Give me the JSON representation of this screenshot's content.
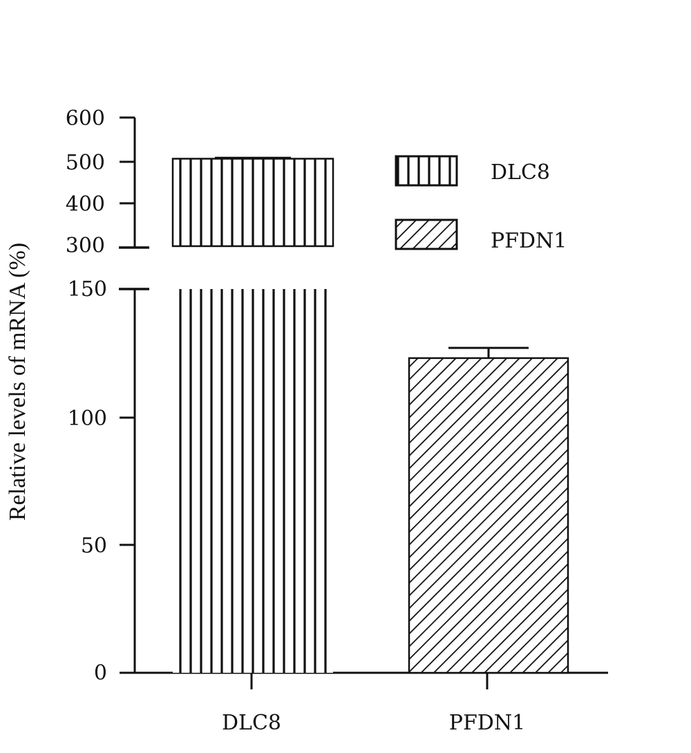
{
  "chart_data": {
    "type": "bar",
    "title": "",
    "xlabel": "",
    "ylabel": "Relative levels of mRNA (%)",
    "categories": [
      "DLC8",
      "PFDN1"
    ],
    "values": [
      505,
      123
    ],
    "errors": [
      2,
      4
    ],
    "fills": [
      "vertical-stripes",
      "diagonal-stripes"
    ],
    "axis_break": {
      "lower_range": [
        0,
        150
      ],
      "upper_range": [
        300,
        600
      ]
    },
    "lower_ticks": [
      "0",
      "50",
      "100",
      "150"
    ],
    "upper_ticks": [
      "300",
      "400",
      "500",
      "600"
    ],
    "legend": {
      "position": "top-right",
      "entries": [
        {
          "label": "DLC8",
          "fill": "vertical-stripes"
        },
        {
          "label": "PFDN1",
          "fill": "diagonal-stripes"
        }
      ]
    },
    "grid": false,
    "colors": {
      "ink": "#111111",
      "background": "#ffffff"
    }
  }
}
